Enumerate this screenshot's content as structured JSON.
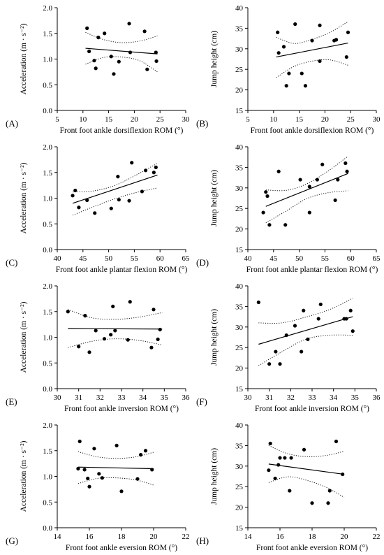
{
  "chart_data": [
    {
      "type": "scatter",
      "letter": "(A)",
      "xlabel": "Front foot ankle dorsiflexion ROM (°)",
      "ylabel": "Acceleration (m · s⁻²)",
      "xlim": [
        5,
        30
      ],
      "xticks": [
        5,
        10,
        15,
        20,
        25,
        30
      ],
      "ylim": [
        0,
        2.0
      ],
      "yticks": [
        "0.0",
        "0.5",
        "1.0",
        "1.5",
        "2.0"
      ],
      "x": [
        10.8,
        11.2,
        12.2,
        12.5,
        13.0,
        14.2,
        15.5,
        16.0,
        17.0,
        19.0,
        19.2,
        22.0,
        22.5,
        24.2,
        24.3
      ],
      "y": [
        1.6,
        1.15,
        0.97,
        0.82,
        1.42,
        1.5,
        1.05,
        0.71,
        0.95,
        1.69,
        1.13,
        1.54,
        0.8,
        1.13,
        0.96
      ],
      "fit": [
        [
          10.5,
          1.21
        ],
        [
          24.5,
          1.1
        ]
      ],
      "ci_upper": [
        [
          10.5,
          1.52
        ],
        [
          14.0,
          1.38
        ],
        [
          17.5,
          1.32
        ],
        [
          21.0,
          1.35
        ],
        [
          24.5,
          1.45
        ]
      ],
      "ci_lower": [
        [
          10.5,
          0.9
        ],
        [
          14.0,
          1.03
        ],
        [
          17.5,
          1.04
        ],
        [
          21.0,
          0.97
        ],
        [
          24.5,
          0.75
        ]
      ]
    },
    {
      "type": "scatter",
      "letter": "(B)",
      "xlabel": "Front foot ankle dorsiflexion ROM (°)",
      "ylabel": "Jump height (cm)",
      "xlim": [
        5,
        30
      ],
      "xticks": [
        5,
        10,
        15,
        20,
        25,
        30
      ],
      "ylim": [
        15,
        40
      ],
      "yticks": [
        "15",
        "20",
        "25",
        "30",
        "35",
        "40"
      ],
      "x": [
        10.8,
        11.0,
        12.0,
        12.5,
        13.0,
        14.2,
        15.5,
        16.2,
        17.5,
        19.0,
        19.0,
        21.8,
        22.2,
        24.2,
        24.5
      ],
      "y": [
        34,
        29,
        30.5,
        21,
        24,
        36,
        24,
        21,
        32,
        35.7,
        27,
        32,
        32.2,
        28,
        34
      ],
      "fit": [
        [
          10.5,
          28.0
        ],
        [
          24.5,
          31.4
        ]
      ],
      "ci_upper": [
        [
          10.5,
          32.8
        ],
        [
          14.0,
          31.3
        ],
        [
          17.5,
          32.3
        ],
        [
          21.0,
          34.0
        ],
        [
          24.5,
          36.6
        ]
      ],
      "ci_lower": [
        [
          10.5,
          23.0
        ],
        [
          14.0,
          25.7
        ],
        [
          17.5,
          27.0
        ],
        [
          21.0,
          27.3
        ],
        [
          24.5,
          26.0
        ]
      ]
    },
    {
      "type": "scatter",
      "letter": "(C)",
      "xlabel": "Front foot ankle plantar flexion ROM (°)",
      "ylabel": "Acceleration (m · s⁻²)",
      "xlim": [
        40,
        65
      ],
      "xticks": [
        40,
        45,
        50,
        55,
        60,
        65
      ],
      "ylim": [
        0,
        2.0
      ],
      "yticks": [
        "0.0",
        "0.5",
        "1.0",
        "1.5",
        "2.0"
      ],
      "x": [
        43.0,
        43.5,
        44.2,
        45.8,
        47.3,
        50.5,
        51.8,
        52.0,
        54.0,
        54.5,
        56.5,
        57.2,
        58.8,
        59.2
      ],
      "y": [
        1.05,
        1.15,
        0.82,
        0.96,
        0.71,
        0.8,
        1.42,
        0.97,
        0.95,
        1.69,
        1.13,
        1.54,
        1.5,
        1.6
      ],
      "fit": [
        [
          43.0,
          0.9
        ],
        [
          59.5,
          1.45
        ]
      ],
      "ci_upper": [
        [
          43.0,
          1.12
        ],
        [
          47.0,
          1.14
        ],
        [
          51.0,
          1.24
        ],
        [
          55.0,
          1.43
        ],
        [
          59.5,
          1.68
        ]
      ],
      "ci_lower": [
        [
          43.0,
          0.67
        ],
        [
          47.0,
          0.83
        ],
        [
          51.0,
          0.98
        ],
        [
          55.0,
          1.1
        ],
        [
          59.5,
          1.2
        ]
      ]
    },
    {
      "type": "scatter",
      "letter": "(D)",
      "xlabel": "Front foot ankle plantar flexion ROM (°)",
      "ylabel": "Jump height (cm)",
      "xlim": [
        40,
        65
      ],
      "xticks": [
        40,
        45,
        50,
        55,
        60,
        65
      ],
      "ylim": [
        15,
        40
      ],
      "yticks": [
        "15",
        "20",
        "25",
        "30",
        "35",
        "40"
      ],
      "x": [
        43.0,
        43.5,
        43.8,
        44.2,
        46.0,
        47.3,
        50.2,
        52.0,
        52.0,
        53.5,
        54.5,
        57.0,
        57.5,
        59.0,
        59.3
      ],
      "y": [
        24,
        29,
        28,
        21,
        34,
        21,
        32,
        30.3,
        24,
        32,
        35.7,
        27,
        32,
        36,
        34
      ],
      "fit": [
        [
          43.5,
          25.5
        ],
        [
          59.5,
          33.5
        ]
      ],
      "ci_upper": [
        [
          43.5,
          29.5
        ],
        [
          47.5,
          29.4
        ],
        [
          51.5,
          31.0
        ],
        [
          55.5,
          34.0
        ],
        [
          59.5,
          37.7
        ]
      ],
      "ci_lower": [
        [
          43.5,
          21.5
        ],
        [
          47.5,
          24.4
        ],
        [
          51.5,
          27.4
        ],
        [
          55.5,
          28.8
        ],
        [
          59.5,
          29.3
        ]
      ]
    },
    {
      "type": "scatter",
      "letter": "(E)",
      "xlabel": "Front foot ankle inversion ROM (°)",
      "ylabel": "Acceleration (m · s⁻²)",
      "xlim": [
        30,
        36
      ],
      "xticks": [
        30,
        31,
        32,
        33,
        34,
        35,
        36
      ],
      "ylim": [
        0,
        2.0
      ],
      "yticks": [
        "0.0",
        "0.5",
        "1.0",
        "1.5",
        "2.0"
      ],
      "x": [
        30.5,
        31.0,
        31.3,
        31.5,
        31.8,
        32.2,
        32.5,
        32.6,
        32.7,
        33.3,
        33.4,
        34.4,
        34.5,
        34.7,
        34.8
      ],
      "y": [
        1.5,
        0.82,
        1.42,
        0.71,
        1.13,
        0.97,
        1.05,
        1.6,
        1.13,
        0.95,
        1.69,
        0.8,
        1.54,
        0.96,
        1.15
      ],
      "fit": [
        [
          30.5,
          1.17
        ],
        [
          34.9,
          1.16
        ]
      ],
      "ci_upper": [
        [
          30.5,
          1.54
        ],
        [
          31.6,
          1.38
        ],
        [
          32.7,
          1.35
        ],
        [
          33.8,
          1.39
        ],
        [
          34.9,
          1.48
        ]
      ],
      "ci_lower": [
        [
          30.5,
          0.8
        ],
        [
          31.6,
          0.92
        ],
        [
          32.7,
          0.97
        ],
        [
          33.8,
          0.94
        ],
        [
          34.9,
          0.85
        ]
      ]
    },
    {
      "type": "scatter",
      "letter": "(F)",
      "xlabel": "Front foot ankle inversion ROM (°)",
      "ylabel": "Jump height (cm)",
      "xlim": [
        30,
        36
      ],
      "xticks": [
        30,
        31,
        32,
        33,
        34,
        35,
        36
      ],
      "ylim": [
        15,
        40
      ],
      "yticks": [
        "15",
        "20",
        "25",
        "30",
        "35",
        "40"
      ],
      "x": [
        30.5,
        31.0,
        31.3,
        31.5,
        31.8,
        32.2,
        32.5,
        32.6,
        32.8,
        33.3,
        33.4,
        34.5,
        34.6,
        34.8,
        34.9
      ],
      "y": [
        36,
        21,
        24,
        21,
        28,
        30.3,
        24,
        34,
        27,
        32,
        35.5,
        32,
        32,
        34,
        29
      ],
      "fit": [
        [
          30.5,
          25.8
        ],
        [
          34.9,
          32.5
        ]
      ],
      "ci_upper": [
        [
          30.5,
          31.0
        ],
        [
          31.6,
          31.0
        ],
        [
          32.7,
          32.4
        ],
        [
          33.8,
          34.2
        ],
        [
          34.9,
          37.0
        ]
      ],
      "ci_lower": [
        [
          30.5,
          20.6
        ],
        [
          31.6,
          24.0
        ],
        [
          32.7,
          27.0
        ],
        [
          33.8,
          28.0
        ],
        [
          34.9,
          28.0
        ]
      ]
    },
    {
      "type": "scatter",
      "letter": "(G)",
      "xlabel": "Front foot ankle eversion ROM (°)",
      "ylabel": "Acceleration (m · s⁻²)",
      "xlim": [
        14,
        22
      ],
      "xticks": [
        14,
        16,
        18,
        20,
        22
      ],
      "ylim": [
        0,
        2.0
      ],
      "yticks": [
        "0.0",
        "0.5",
        "1.0",
        "1.5",
        "2.0"
      ],
      "x": [
        15.3,
        15.4,
        15.7,
        15.9,
        16.0,
        16.3,
        16.6,
        16.8,
        17.7,
        18.0,
        19.0,
        19.2,
        19.5,
        19.9
      ],
      "y": [
        1.15,
        1.68,
        1.13,
        0.96,
        0.8,
        1.54,
        1.05,
        0.97,
        1.6,
        0.71,
        0.95,
        1.42,
        1.5,
        1.13
      ],
      "fit": [
        [
          15.3,
          1.18
        ],
        [
          20.0,
          1.15
        ]
      ],
      "ci_upper": [
        [
          15.3,
          1.48
        ],
        [
          16.5,
          1.38
        ],
        [
          17.7,
          1.35
        ],
        [
          18.9,
          1.38
        ],
        [
          20.0,
          1.47
        ]
      ],
      "ci_lower": [
        [
          15.3,
          0.86
        ],
        [
          16.5,
          0.96
        ],
        [
          17.7,
          0.97
        ],
        [
          18.9,
          0.93
        ],
        [
          20.0,
          0.83
        ]
      ]
    },
    {
      "type": "scatter",
      "letter": "(H)",
      "xlabel": "Front foot ankle eversion ROM (°)",
      "ylabel": "Jump height (cm)",
      "xlim": [
        14,
        22
      ],
      "xticks": [
        14,
        16,
        18,
        20,
        22
      ],
      "ylim": [
        15,
        40
      ],
      "yticks": [
        "15",
        "20",
        "25",
        "30",
        "35",
        "40"
      ],
      "x": [
        15.3,
        15.4,
        15.7,
        15.9,
        16.0,
        16.3,
        16.6,
        16.7,
        17.5,
        18.0,
        19.0,
        19.1,
        19.5,
        19.9
      ],
      "y": [
        29,
        35.5,
        27,
        30.3,
        32,
        32,
        24,
        32,
        34,
        21,
        21,
        24,
        36,
        28
      ],
      "fit": [
        [
          15.3,
          30.5
        ],
        [
          20.0,
          28.0
        ]
      ],
      "ci_upper": [
        [
          15.3,
          35.0
        ],
        [
          16.5,
          33.0
        ],
        [
          17.7,
          32.3
        ],
        [
          18.9,
          32.6
        ],
        [
          20.0,
          33.6
        ]
      ],
      "ci_lower": [
        [
          15.3,
          26.0
        ],
        [
          16.5,
          27.4
        ],
        [
          17.7,
          26.5
        ],
        [
          18.9,
          24.8
        ],
        [
          20.0,
          22.4
        ]
      ]
    }
  ]
}
